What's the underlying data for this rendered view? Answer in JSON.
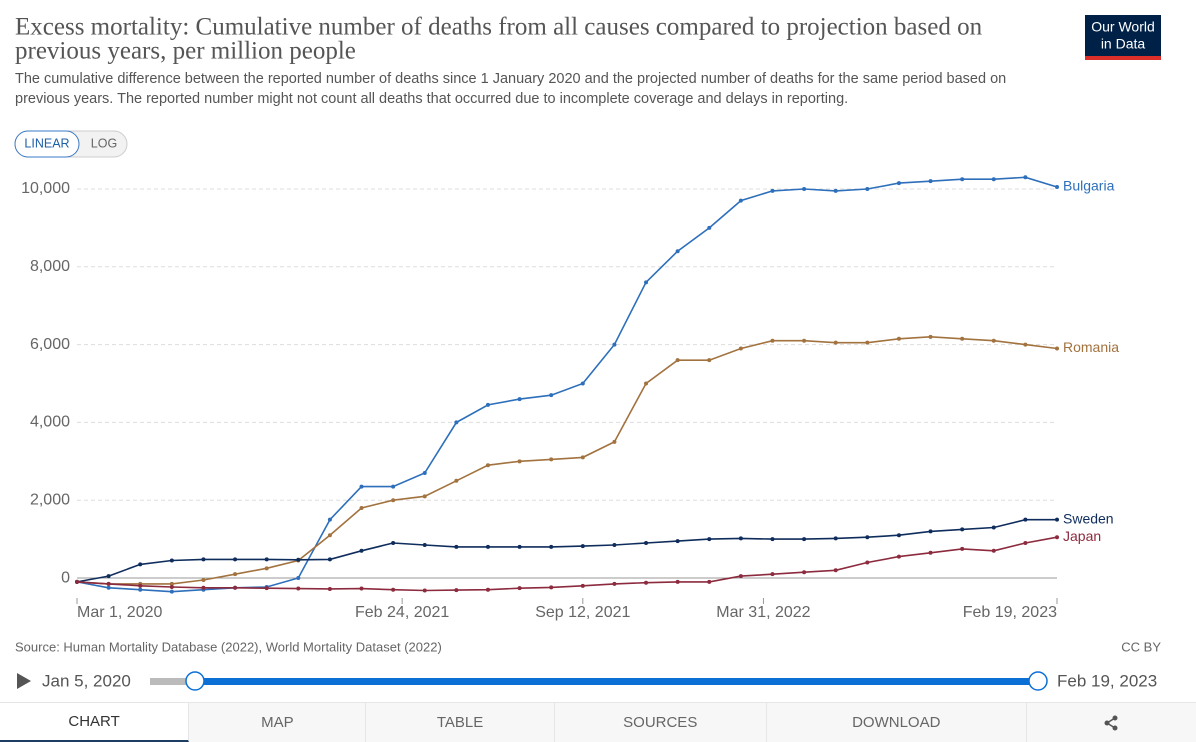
{
  "header": {
    "title": [
      "Excess mortality: Cumulative number of deaths from all causes compared to projection based on",
      "previous years, per million people"
    ],
    "subtitle": [
      "The cumulative difference between the reported number of deaths since 1 January 2020 and the projected number of deaths for the same period based on",
      "previous years. The reported number might not count all deaths that occurred due to incomplete coverage and delays in reporting."
    ],
    "logo": [
      "Our World",
      "in Data"
    ]
  },
  "controls": {
    "scale_buttons": [
      "LINEAR",
      "LOG"
    ]
  },
  "chart_data": {
    "type": "line",
    "x": [
      "2020-03-01",
      "2020-04-05",
      "2020-05-10",
      "2020-06-14",
      "2020-07-19",
      "2020-08-23",
      "2020-09-27",
      "2020-11-01",
      "2020-12-06",
      "2021-01-10",
      "2021-02-14",
      "2021-03-21",
      "2021-04-25",
      "2021-05-30",
      "2021-07-04",
      "2021-08-08",
      "2021-09-12",
      "2021-10-17",
      "2021-11-21",
      "2021-12-26",
      "2022-01-30",
      "2022-03-06",
      "2022-04-10",
      "2022-05-15",
      "2022-06-19",
      "2022-07-24",
      "2022-08-28",
      "2022-10-02",
      "2022-11-06",
      "2022-12-11",
      "2023-01-15",
      "2023-02-19"
    ],
    "series": [
      {
        "name": "Bulgaria",
        "color": "#2d6fbb",
        "values": [
          -100,
          -250,
          -300,
          -350,
          -300,
          -250,
          -230,
          0,
          1500,
          2350,
          2350,
          2700,
          4000,
          4450,
          4600,
          4700,
          5000,
          6000,
          7600,
          8400,
          9000,
          9700,
          9950,
          10000,
          9950,
          10000,
          10150,
          10200,
          10250,
          10250,
          10300,
          10050
        ]
      },
      {
        "name": "Romania",
        "color": "#a2723f",
        "values": [
          -100,
          -150,
          -150,
          -150,
          -50,
          100,
          250,
          450,
          1100,
          1800,
          2000,
          2100,
          2500,
          2900,
          3000,
          3050,
          3100,
          3500,
          5000,
          5600,
          5600,
          5900,
          6100,
          6100,
          6050,
          6050,
          6150,
          6200,
          6150,
          6100,
          6000,
          5900
        ]
      },
      {
        "name": "Sweden",
        "color": "#0f2d5c",
        "values": [
          -100,
          50,
          350,
          450,
          480,
          480,
          480,
          470,
          480,
          700,
          900,
          850,
          800,
          800,
          800,
          800,
          820,
          850,
          900,
          950,
          1000,
          1020,
          1000,
          1000,
          1020,
          1050,
          1100,
          1200,
          1250,
          1300,
          1500,
          1500
        ]
      },
      {
        "name": "Japan",
        "color": "#8c2a3e",
        "values": [
          -100,
          -150,
          -200,
          -230,
          -250,
          -250,
          -260,
          -270,
          -280,
          -270,
          -300,
          -320,
          -310,
          -300,
          -260,
          -240,
          -200,
          -150,
          -120,
          -100,
          -100,
          50,
          100,
          150,
          200,
          400,
          550,
          650,
          750,
          700,
          900,
          1050
        ]
      }
    ],
    "xlim": [
      "2020-03-01",
      "2023-02-19"
    ],
    "xticks": [
      {
        "value": "2020-03-01",
        "label": "Mar 1, 2020"
      },
      {
        "value": "2021-02-24",
        "label": "Feb 24, 2021"
      },
      {
        "value": "2021-09-12",
        "label": "Sep 12, 2021"
      },
      {
        "value": "2022-03-31",
        "label": "Mar 31, 2022"
      },
      {
        "value": "2023-02-19",
        "label": "Feb 19, 2023"
      }
    ],
    "ylim": [
      -500,
      10400
    ],
    "yticks": [
      0,
      {
        "value": 2000,
        "label": "2,000"
      },
      {
        "value": 4000,
        "label": "4,000"
      },
      {
        "value": 6000,
        "label": "6,000"
      },
      {
        "value": 8000,
        "label": "8,000"
      },
      {
        "value": 10000,
        "label": "10,000"
      }
    ],
    "grid": true
  },
  "footer": {
    "source": "Source: Human Mortality Database (2022), World Mortality Dataset (2022)",
    "license": "CC BY"
  },
  "timeline": {
    "start": "Jan 5, 2020",
    "end": "Feb 19, 2023"
  },
  "tabs": [
    "CHART",
    "MAP",
    "TABLE",
    "SOURCES",
    "DOWNLOAD"
  ]
}
